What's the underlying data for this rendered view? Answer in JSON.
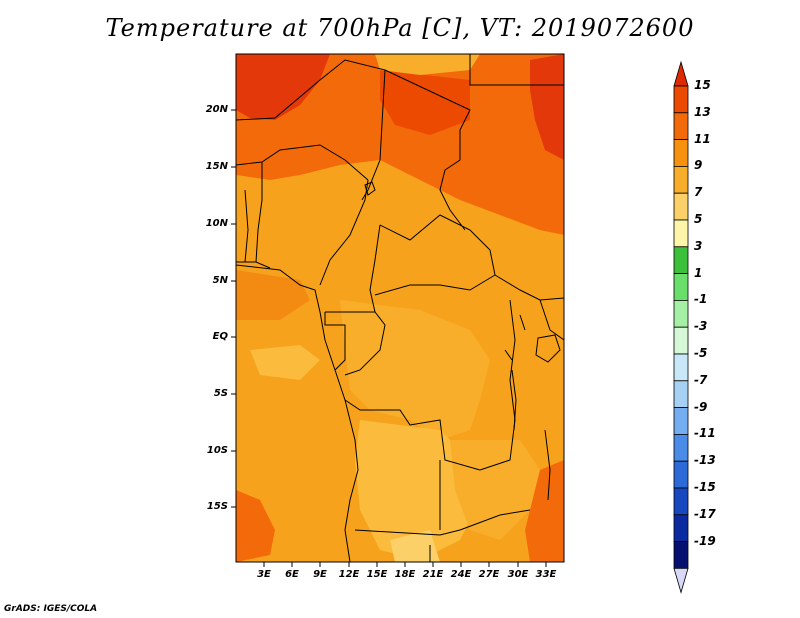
{
  "title": "Temperature at 700hPa [C], VT: 2019072600",
  "credit": "GrADS: IGES/COLA",
  "latitude_labels": [
    "20N",
    "15N",
    "10N",
    "5N",
    "EQ",
    "5S",
    "10S",
    "15S"
  ],
  "longitude_labels": [
    "3E",
    "6E",
    "9E",
    "12E",
    "15E",
    "18E",
    "21E",
    "24E",
    "27E",
    "30E",
    "33E"
  ],
  "colorbar": {
    "labels": [
      "15",
      "13",
      "11",
      "9",
      "7",
      "5",
      "3",
      "1",
      "-1",
      "-3",
      "-5",
      "-7",
      "-9",
      "-11",
      "-13",
      "-15",
      "-17",
      "-19"
    ],
    "colors": [
      "#dd2a00",
      "#ec4a00",
      "#f36a0a",
      "#f6920f",
      "#f8ae2a",
      "#fbd068",
      "#fdf5a8",
      "#3cc03c",
      "#6ade6a",
      "#a6f0a6",
      "#d6f8d6",
      "#c8e8f8",
      "#a6d0f4",
      "#74aef0",
      "#4a8ce8",
      "#2c6ad8",
      "#1848c0",
      "#0c2aa0",
      "#061070"
    ],
    "under_color": "#d8d8f8"
  },
  "colors": {
    "warm": "#f7a21c",
    "hot": "#f36a0a",
    "hotter": "#e8420a",
    "cool": "#fbbb3c",
    "coolest": "#fbd068"
  }
}
